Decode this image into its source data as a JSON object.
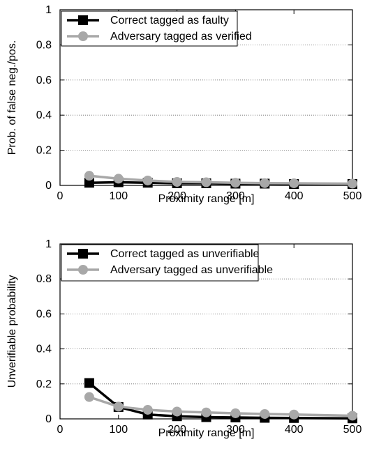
{
  "chart_data": [
    {
      "type": "line",
      "xlabel": "Proximity range [m]",
      "ylabel": "Prob. of false neg./pos.",
      "xlim": [
        0,
        500
      ],
      "ylim": [
        0,
        1
      ],
      "xticks": [
        "0",
        "100",
        "200",
        "300",
        "400",
        "500"
      ],
      "yticks": [
        "0",
        "0.2",
        "0.4",
        "0.6",
        "0.8",
        "1"
      ],
      "grid": "horizontal dotted",
      "legend": "top-left",
      "x": [
        50,
        100,
        150,
        200,
        250,
        300,
        350,
        400,
        500
      ],
      "series": [
        {
          "name": "Correct tagged as faulty",
          "color": "#000000",
          "marker": "square",
          "values": [
            0.015,
            0.018,
            0.015,
            0.012,
            0.012,
            0.01,
            0.01,
            0.008,
            0.008
          ]
        },
        {
          "name": "Adversary tagged as verified",
          "color": "#a8a8a8",
          "marker": "circle",
          "values": [
            0.055,
            0.038,
            0.028,
            0.02,
            0.018,
            0.015,
            0.013,
            0.012,
            0.01
          ]
        }
      ]
    },
    {
      "type": "line",
      "xlabel": "Proximity range [m]",
      "ylabel": "Unverifiable probability",
      "xlim": [
        0,
        500
      ],
      "ylim": [
        0,
        1
      ],
      "xticks": [
        "0",
        "100",
        "200",
        "300",
        "400",
        "500"
      ],
      "yticks": [
        "0",
        "0.2",
        "0.4",
        "0.6",
        "0.8",
        "1"
      ],
      "grid": "horizontal dotted",
      "legend": "top-left",
      "x": [
        50,
        100,
        150,
        200,
        250,
        300,
        350,
        400,
        500
      ],
      "series": [
        {
          "name": "Correct tagged as unverifiable",
          "color": "#000000",
          "marker": "square",
          "values": [
            0.205,
            0.068,
            0.025,
            0.015,
            0.01,
            0.008,
            0.006,
            0.005,
            0.003
          ]
        },
        {
          "name": "Adversary tagged as unverifiable",
          "color": "#a8a8a8",
          "marker": "circle",
          "values": [
            0.125,
            0.07,
            0.052,
            0.042,
            0.037,
            0.032,
            0.028,
            0.025,
            0.018
          ]
        }
      ]
    }
  ]
}
